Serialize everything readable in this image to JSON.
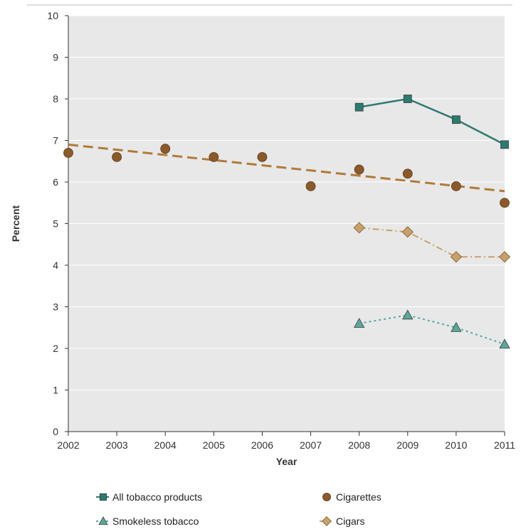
{
  "chart_data": {
    "type": "line",
    "title": "",
    "xlabel": "Year",
    "ylabel": "Percent",
    "categories": [
      "2002",
      "2003",
      "2004",
      "2005",
      "2006",
      "2007",
      "2008",
      "2009",
      "2010",
      "2011"
    ],
    "ylim": [
      0,
      10
    ],
    "yticks": [
      "0",
      "1",
      "2",
      "3",
      "4",
      "5",
      "6",
      "7",
      "8",
      "9",
      "10"
    ],
    "grid": true,
    "legend_position": "bottom",
    "series": [
      {
        "name": "All tobacco products",
        "marker": "square",
        "line": "solid",
        "color": "#2d7a70",
        "values": [
          null,
          null,
          null,
          null,
          null,
          null,
          7.8,
          8.0,
          7.5,
          6.9
        ]
      },
      {
        "name": "Cigarettes",
        "marker": "circle",
        "line": "none",
        "color": "#8b5a2b",
        "values": [
          6.7,
          6.6,
          6.8,
          6.6,
          6.6,
          5.9,
          6.3,
          6.2,
          5.9,
          5.5
        ]
      },
      {
        "name": "Smokeless tobacco",
        "marker": "triangle",
        "line": "dotted",
        "color": "#5aa89c",
        "values": [
          null,
          null,
          null,
          null,
          null,
          null,
          2.6,
          2.8,
          2.5,
          2.1
        ]
      },
      {
        "name": "Cigars",
        "marker": "diamond",
        "line": "dashdot",
        "color": "#c9a06a",
        "values": [
          null,
          null,
          null,
          null,
          null,
          null,
          4.9,
          4.8,
          4.2,
          4.2
        ]
      }
    ],
    "trendline": {
      "series": "Cigarettes",
      "line": "dashed",
      "color": "#b07a3a",
      "start": [
        "2002",
        6.9
      ],
      "end": [
        "2011",
        5.78
      ]
    }
  }
}
